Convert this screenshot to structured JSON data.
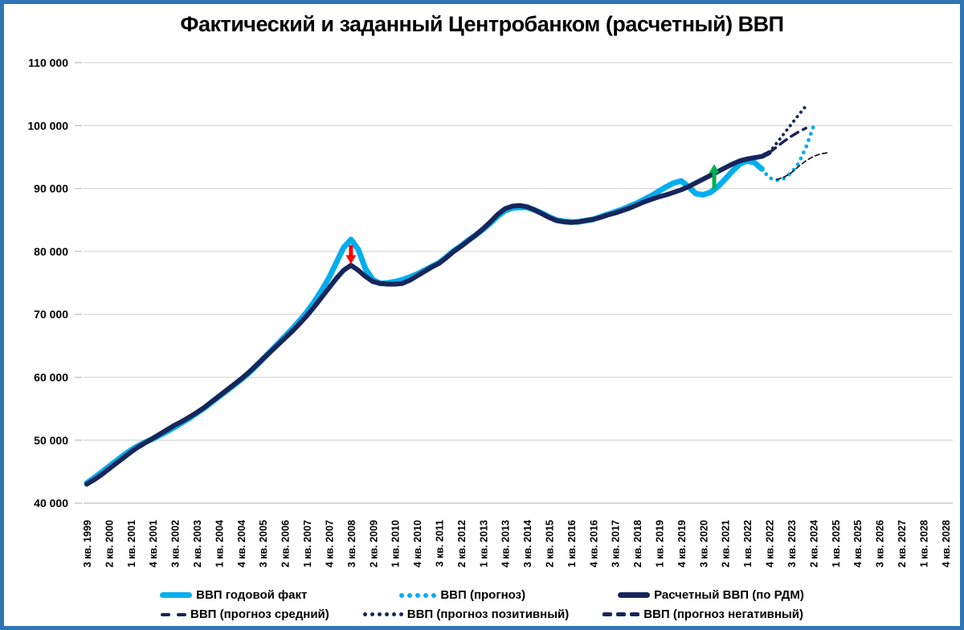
{
  "title": "Фактический и заданный Центробанком (расчетный) ВВП",
  "colors": {
    "fact_cyan": "#00AEEF",
    "calc_navy": "#16265B",
    "negative_forecast": "#1A1A1A",
    "arrow_red": "#FF0000",
    "arrow_green": "#00B050",
    "gridline": "#D9D9D9",
    "axis": "#BFBFBF",
    "frame_border": "#2E75B6"
  },
  "chart_data": {
    "type": "line",
    "title": "Фактический и заданный Центробанком (расчетный) ВВП",
    "grid": "horizontal",
    "legend_position": "bottom",
    "y_axis": {
      "min": 40000,
      "max": 110000,
      "step": 10000,
      "ticks": [
        {
          "value": 110000,
          "label": "110 000"
        },
        {
          "value": 100000,
          "label": "100 000"
        },
        {
          "value": 90000,
          "label": "90 000"
        },
        {
          "value": 80000,
          "label": "80 000"
        },
        {
          "value": 70000,
          "label": "70 000"
        },
        {
          "value": 60000,
          "label": "60 000"
        },
        {
          "value": 50000,
          "label": "50 000"
        },
        {
          "value": 40000,
          "label": "40 000"
        }
      ]
    },
    "x_axis": {
      "unit": "quarter",
      "start": "3 кв. 1999",
      "end": "4 кв. 2028",
      "tick_every": 3,
      "tick_labels": [
        "3 кв. 1999",
        "2 кв. 2000",
        "1 кв. 2001",
        "4 кв. 2001",
        "3 кв. 2002",
        "2 кв. 2003",
        "1 кв. 2004",
        "4 кв. 2004",
        "3 кв. 2005",
        "2 кв. 2006",
        "1 кв. 2007",
        "4 кв. 2007",
        "3 кв. 2008",
        "2 кв. 2009",
        "1 кв. 2010",
        "4 кв. 2010",
        "3 кв. 2011",
        "2 кв. 2012",
        "1 кв. 2013",
        "4 кв. 2013",
        "3 кв. 2014",
        "2 кв. 2015",
        "1 кв. 2016",
        "4 кв. 2016",
        "3 кв. 2017",
        "2 кв. 2018",
        "1 кв. 2019",
        "4 кв. 2019",
        "3 кв. 2020",
        "2 кв. 2021",
        "1 кв. 2022",
        "4 кв. 2022",
        "3 кв. 2023",
        "2 кв. 2024",
        "1 кв. 2025",
        "4 кв. 2025",
        "3 кв. 2026",
        "2 кв. 2027",
        "1 кв. 2028",
        "4 кв. 2028"
      ]
    },
    "series": [
      {
        "name": "ВВП годовой факт",
        "color": "#00AEEF",
        "style": "fact-solid",
        "start_index": 0,
        "values": [
          43200,
          44000,
          44900,
          45800,
          46700,
          47600,
          48400,
          49100,
          49700,
          50200,
          50800,
          51400,
          52100,
          52800,
          53500,
          54300,
          55100,
          56000,
          56900,
          57800,
          58700,
          59600,
          60600,
          61700,
          62900,
          64100,
          65300,
          66500,
          67700,
          69000,
          70400,
          72000,
          73800,
          75800,
          78200,
          80600,
          81900,
          80300,
          77200,
          75500,
          74900,
          75000,
          75200,
          75500,
          75900,
          76400,
          77000,
          77600,
          78200,
          79100,
          80100,
          80900,
          81800,
          82600,
          83500,
          84500,
          85600,
          86500,
          86900,
          87000,
          87000,
          86600,
          86100,
          85500,
          85000,
          84800,
          84700,
          84700,
          84900,
          85100,
          85500,
          85900,
          86300,
          86700,
          87200,
          87700,
          88300,
          88900,
          89600,
          90300,
          90900,
          91200,
          90300,
          89200,
          89000,
          89400,
          90300,
          91500,
          92800,
          93900,
          94400,
          94100,
          93100
        ]
      },
      {
        "name": "ВВП (прогноз)",
        "color": "#00AEEF",
        "style": "dotted",
        "start_index": 92,
        "values": [
          93100,
          91700,
          91300,
          91600,
          92500,
          94000,
          96500,
          99800
        ]
      },
      {
        "name": "Расчетный ВВП (по РДМ)",
        "color": "#16265B",
        "style": "calc-solid",
        "start_index": 0,
        "values": [
          43000,
          43700,
          44500,
          45400,
          46300,
          47200,
          48100,
          48900,
          49600,
          50300,
          51000,
          51700,
          52400,
          53000,
          53700,
          54400,
          55200,
          56100,
          57000,
          57900,
          58800,
          59700,
          60700,
          61800,
          62900,
          64000,
          65100,
          66200,
          67300,
          68500,
          69800,
          71200,
          72700,
          74200,
          75700,
          77000,
          77800,
          77000,
          76000,
          75200,
          74900,
          74800,
          74800,
          74900,
          75400,
          76100,
          76800,
          77500,
          78100,
          79000,
          80000,
          80800,
          81700,
          82600,
          83600,
          84700,
          85900,
          86800,
          87200,
          87300,
          87100,
          86600,
          86000,
          85400,
          84900,
          84700,
          84600,
          84700,
          84900,
          85100,
          85400,
          85800,
          86100,
          86500,
          86900,
          87400,
          87900,
          88300,
          88700,
          89000,
          89400,
          89800,
          90300,
          90900,
          91500,
          92100,
          92700,
          93300,
          93900,
          94400,
          94700,
          94900,
          95100,
          95700
        ]
      },
      {
        "name": "ВВП (прогноз средний)",
        "color": "#16265B",
        "style": "dashed",
        "start_index": 93,
        "values": [
          95700,
          96600,
          97500,
          98300,
          99000,
          99600
        ]
      },
      {
        "name": "ВВП (прогноз позитивный)",
        "color": "#16265B",
        "style": "dotted-small",
        "start_index": 93,
        "values": [
          95700,
          97200,
          98700,
          100200,
          101700,
          103100
        ]
      },
      {
        "name": "ВВП (прогноз негативный)",
        "color": "#1A1A1A",
        "style": "dashed-thin",
        "start_index": 94,
        "values": [
          91400,
          91800,
          92500,
          93500,
          94400,
          95100,
          95500,
          95700
        ]
      }
    ],
    "annotations": [
      {
        "shape": "arrow-down",
        "color": "#FF0000",
        "x_index": 36,
        "from_value": 81000,
        "to_value": 78000
      },
      {
        "shape": "arrow-up",
        "color": "#00B050",
        "x_index": 85.5,
        "from_value": 89900,
        "to_value": 93900
      }
    ]
  }
}
